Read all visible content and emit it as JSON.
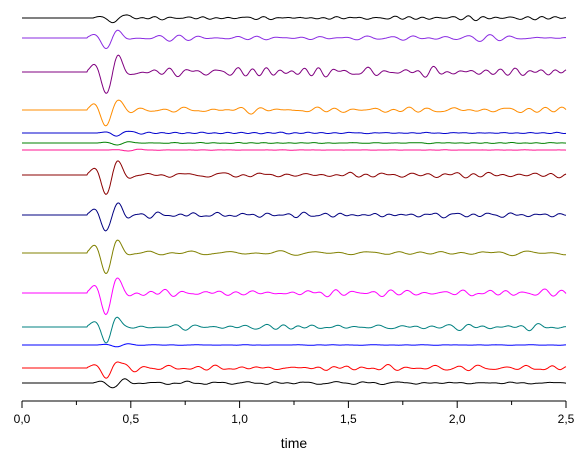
{
  "chart_data": {
    "type": "line",
    "title": "",
    "xlabel": "time",
    "ylabel": "",
    "xlim": [
      0.0,
      2.5
    ],
    "x_ticks": [
      "0,0",
      "0,5",
      "1,0",
      "1,5",
      "2,0",
      "2,5"
    ],
    "x_tick_values": [
      0.0,
      0.5,
      1.0,
      1.5,
      2.0,
      2.5
    ],
    "x_minor_step": 0.25,
    "grid": false,
    "legend": "none",
    "series": [
      {
        "color": "#000000",
        "onset": 0.33,
        "amp": 5,
        "noise": 0.7,
        "seed": 1
      },
      {
        "color": "#8a2be2",
        "onset": 0.3,
        "amp": 12,
        "noise": 0.55,
        "seed": 2
      },
      {
        "color": "#800080",
        "onset": 0.3,
        "amp": 22,
        "noise": 0.45,
        "seed": 3
      },
      {
        "color": "#ff8c00",
        "onset": 0.3,
        "amp": 18,
        "noise": 0.45,
        "seed": 4
      },
      {
        "color": "#0000cd",
        "onset": 0.35,
        "amp": 3,
        "noise": 0.5,
        "seed": 5
      },
      {
        "color": "#008000",
        "onset": 0.35,
        "amp": 2,
        "noise": 0.5,
        "seed": 6
      },
      {
        "color": "#ff1493",
        "onset": 0.4,
        "amp": 1,
        "noise": 0.5,
        "seed": 7
      },
      {
        "color": "#8b0000",
        "onset": 0.3,
        "amp": 20,
        "noise": 0.35,
        "seed": 8
      },
      {
        "color": "#000080",
        "onset": 0.3,
        "amp": 17,
        "noise": 0.3,
        "seed": 9
      },
      {
        "color": "#808000",
        "onset": 0.3,
        "amp": 22,
        "noise": 0.3,
        "seed": 10
      },
      {
        "color": "#ff00ff",
        "onset": 0.3,
        "amp": 22,
        "noise": 0.35,
        "seed": 11
      },
      {
        "color": "#008080",
        "onset": 0.3,
        "amp": 17,
        "noise": 0.35,
        "seed": 12
      },
      {
        "color": "#0000ff",
        "onset": 0.35,
        "amp": 2,
        "noise": 0.4,
        "seed": 13
      },
      {
        "color": "#ff0000",
        "onset": 0.3,
        "amp": 10,
        "noise": 0.55,
        "seed": 14
      },
      {
        "color": "#000000",
        "onset": 0.33,
        "amp": 5,
        "noise": 0.7,
        "seed": 15
      }
    ]
  }
}
